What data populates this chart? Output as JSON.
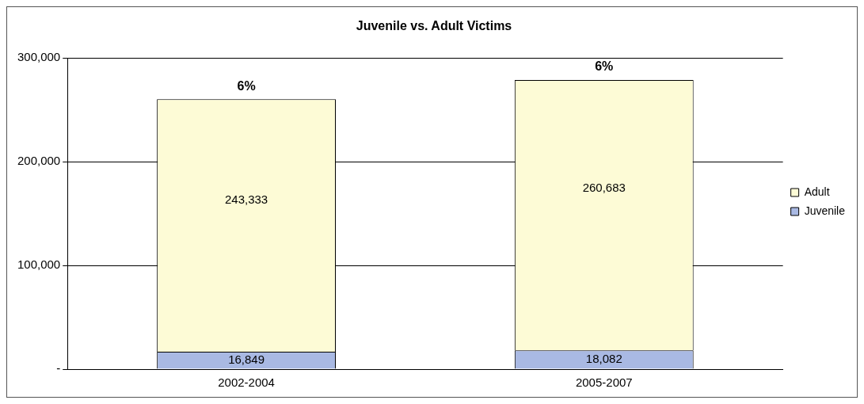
{
  "chart_data": {
    "type": "bar",
    "title": "Juvenile vs. Adult Victims",
    "categories": [
      "2002-2004",
      "2005-2007"
    ],
    "stacked": true,
    "series": [
      {
        "name": "Juvenile",
        "color": "#a9b9e3",
        "values": [
          16849,
          18082
        ],
        "value_labels": [
          "16,849",
          "18,082"
        ]
      },
      {
        "name": "Adult",
        "color": "#fdfbd6",
        "values": [
          243333,
          260683
        ],
        "value_labels": [
          "243,333",
          "260,683"
        ]
      }
    ],
    "ylim": [
      0,
      300000
    ],
    "yticks": [
      {
        "value": 0,
        "label": "-"
      },
      {
        "value": 100000,
        "label": "100,000"
      },
      {
        "value": 200000,
        "label": "200,000"
      },
      {
        "value": 300000,
        "label": "300,000"
      }
    ],
    "grid": "y",
    "legend": "right",
    "annotations": [
      {
        "text": "6%",
        "x": "2002-2004",
        "y": 260182
      },
      {
        "text": "6%",
        "x": "2005-2007",
        "y": 278765
      }
    ]
  }
}
